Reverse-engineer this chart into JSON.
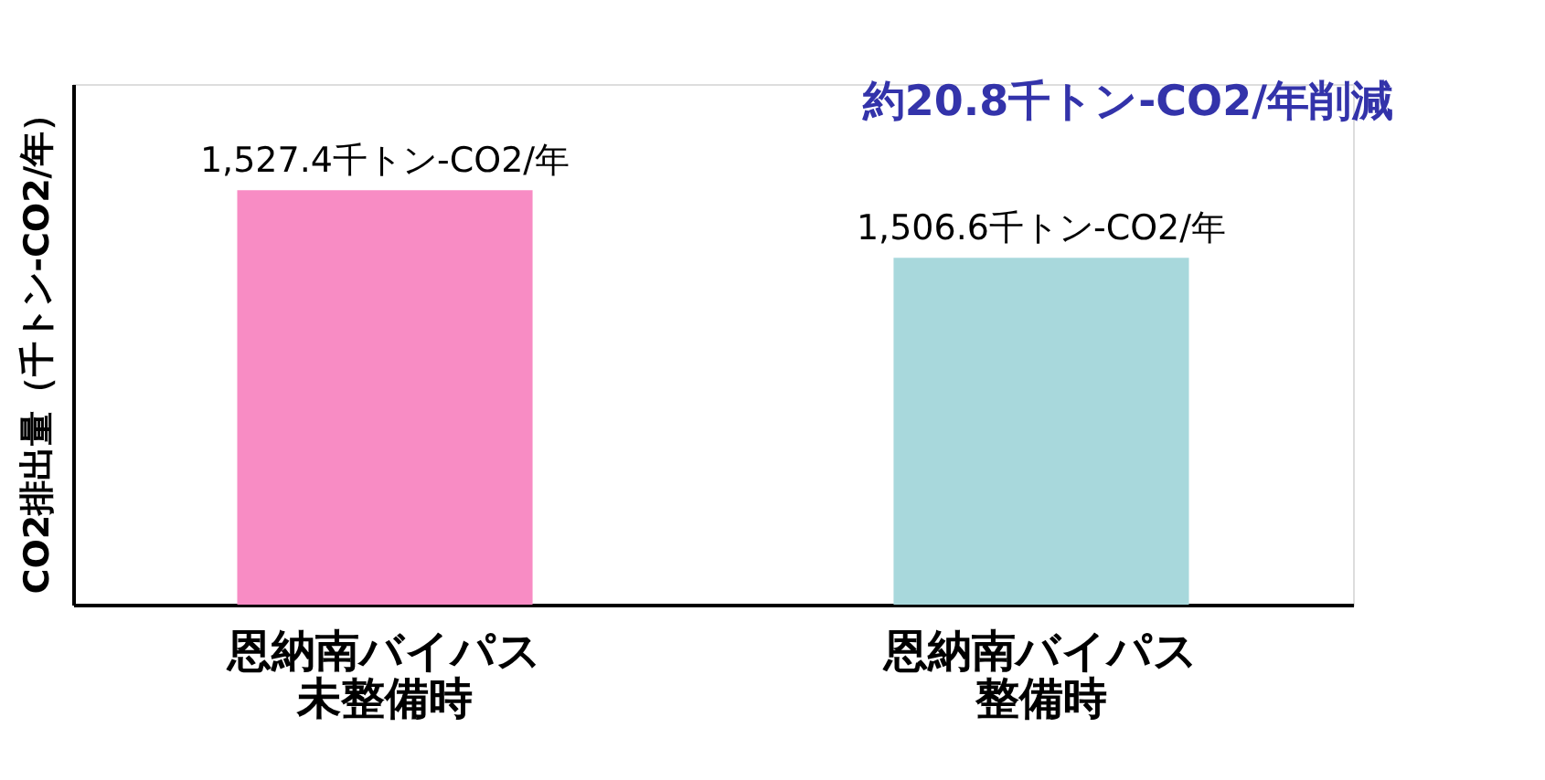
{
  "chart_data": {
    "type": "bar",
    "ylabel": "CO2排出量（千トン-CO2/年）",
    "categories": [
      "恩納南バイパス未整備時",
      "恩納南バイパス整備時"
    ],
    "values": [
      1527.4,
      1506.6
    ],
    "colors": [
      "#f88cc4",
      "#a8d8dc"
    ],
    "value_labels": [
      "1,527.4千トン-CO2/年",
      "1,506.6千トン-CO2/年"
    ],
    "ylim": [
      1400,
      1560
    ],
    "tick_labels": "x",
    "grid": false,
    "annotations": [
      "約20.8千トン-CO2/年削減"
    ]
  }
}
